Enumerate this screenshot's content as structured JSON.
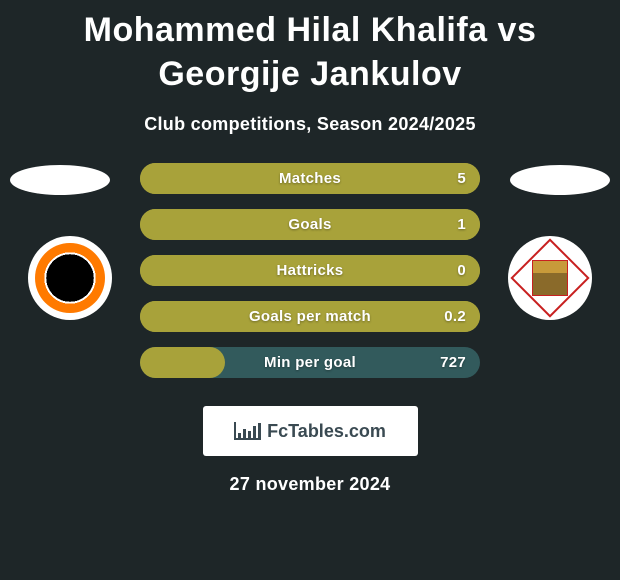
{
  "title": "Mohammed Hilal Khalifa vs Georgije Jankulov",
  "subtitle": "Club competitions, Season 2024/2025",
  "date": "27 november 2024",
  "site_label": "FcTables.com",
  "colors": {
    "background": "#1e2628",
    "accent_olive": "#a8a23a",
    "accent_teal": "#325a5c",
    "badge_left": "#ffffff",
    "badge_right": "#ffffff",
    "text": "#ffffff"
  },
  "badges": {
    "left_color": "#ffffff",
    "right_color": "#ffffff"
  },
  "clubs": {
    "left_name": "ajman-club",
    "right_name": "sharjah-club"
  },
  "stats": [
    {
      "label": "Matches",
      "value": "5",
      "base": "#a8a23a",
      "fill_pct": 100,
      "fill": "#a8a23a"
    },
    {
      "label": "Goals",
      "value": "1",
      "base": "#a8a23a",
      "fill_pct": 100,
      "fill": "#a8a23a"
    },
    {
      "label": "Hattricks",
      "value": "0",
      "base": "#a8a23a",
      "fill_pct": 100,
      "fill": "#a8a23a"
    },
    {
      "label": "Goals per match",
      "value": "0.2",
      "base": "#a8a23a",
      "fill_pct": 100,
      "fill": "#a8a23a"
    },
    {
      "label": "Min per goal",
      "value": "727",
      "base": "#325a5c",
      "fill_pct": 25,
      "fill": "#a8a23a"
    }
  ],
  "typography": {
    "title_fontsize": 34,
    "subtitle_fontsize": 18,
    "stat_fontsize": 15,
    "title_weight": 900
  }
}
